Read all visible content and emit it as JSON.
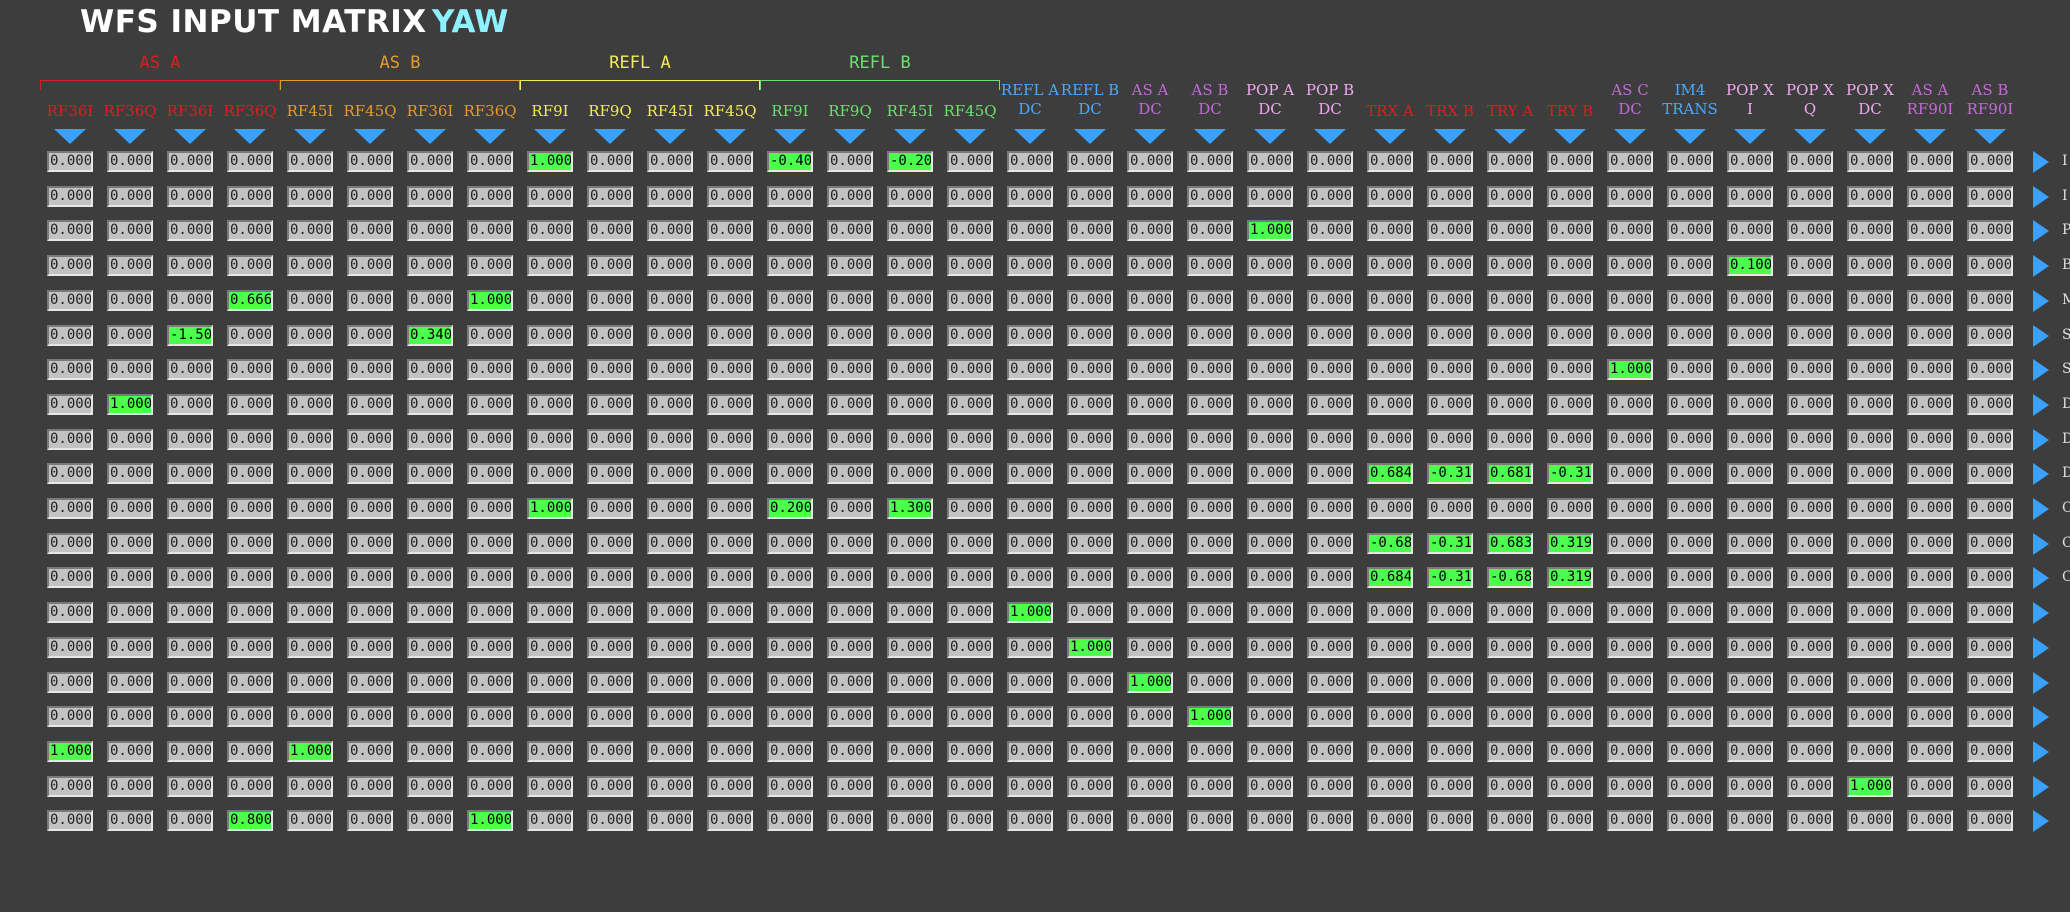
{
  "title": "WFS INPUT MATRIX",
  "dof": "YAW",
  "colors": {
    "background": "#3d3d3d",
    "cell_zero": "#c2c2c2",
    "cell_nonzero": "#4cff4c",
    "arrow": "#39a1ff",
    "dof_title": "#8ff0ff"
  },
  "groups": [
    {
      "label": "AS A",
      "start": 0,
      "end": 3,
      "color": "#d8201e"
    },
    {
      "label": "AS B",
      "start": 4,
      "end": 7,
      "color": "#e69a2a"
    },
    {
      "label": "REFL A",
      "start": 8,
      "end": 11,
      "color": "#f2ea5a"
    },
    {
      "label": "REFL B",
      "start": 12,
      "end": 15,
      "color": "#6ee06e"
    }
  ],
  "columns": [
    {
      "l1": "",
      "l2": "RF36I",
      "color": "#d8201e"
    },
    {
      "l1": "",
      "l2": "RF36Q",
      "color": "#d8201e"
    },
    {
      "l1": "",
      "l2": "RF36I",
      "color": "#d8201e"
    },
    {
      "l1": "",
      "l2": "RF36Q",
      "color": "#d8201e"
    },
    {
      "l1": "",
      "l2": "RF45I",
      "color": "#e69a2a"
    },
    {
      "l1": "",
      "l2": "RF45Q",
      "color": "#e69a2a"
    },
    {
      "l1": "",
      "l2": "RF36I",
      "color": "#e69a2a"
    },
    {
      "l1": "",
      "l2": "RF36Q",
      "color": "#e69a2a"
    },
    {
      "l1": "",
      "l2": "RF9I",
      "color": "#f2ea5a"
    },
    {
      "l1": "",
      "l2": "RF9Q",
      "color": "#f2ea5a"
    },
    {
      "l1": "",
      "l2": "RF45I",
      "color": "#f2ea5a"
    },
    {
      "l1": "",
      "l2": "RF45Q",
      "color": "#f2ea5a"
    },
    {
      "l1": "",
      "l2": "RF9I",
      "color": "#6ee06e"
    },
    {
      "l1": "",
      "l2": "RF9Q",
      "color": "#6ee06e"
    },
    {
      "l1": "",
      "l2": "RF45I",
      "color": "#6ee06e"
    },
    {
      "l1": "",
      "l2": "RF45Q",
      "color": "#6ee06e"
    },
    {
      "l1": "REFL A",
      "l2": "DC",
      "color": "#4aa8ff"
    },
    {
      "l1": "REFL B",
      "l2": "DC",
      "color": "#4aa8ff"
    },
    {
      "l1": "AS A",
      "l2": "DC",
      "color": "#c26ad6"
    },
    {
      "l1": "AS B",
      "l2": "DC",
      "color": "#c26ad6"
    },
    {
      "l1": "POP A",
      "l2": "DC",
      "color": "#f0a8f0"
    },
    {
      "l1": "POP B",
      "l2": "DC",
      "color": "#f0a8f0"
    },
    {
      "l1": "",
      "l2": "TRX A",
      "color": "#d8201e"
    },
    {
      "l1": "",
      "l2": "TRX B",
      "color": "#d8201e"
    },
    {
      "l1": "",
      "l2": "TRY A",
      "color": "#d8201e"
    },
    {
      "l1": "",
      "l2": "TRY B",
      "color": "#d8201e"
    },
    {
      "l1": "AS C",
      "l2": "DC",
      "color": "#c26ad6"
    },
    {
      "l1": "IM4",
      "l2": "TRANS",
      "color": "#4aa8ff"
    },
    {
      "l1": "POP X",
      "l2": "I",
      "color": "#f0a8f0"
    },
    {
      "l1": "POP X",
      "l2": "Q",
      "color": "#f0a8f0"
    },
    {
      "l1": "POP X",
      "l2": "DC",
      "color": "#f0a8f0"
    },
    {
      "l1": "AS A",
      "l2": "RF90I",
      "color": "#c26ad6"
    },
    {
      "l1": "AS B",
      "l2": "RF90I",
      "color": "#c26ad6"
    }
  ],
  "zero_text": "0.0000",
  "nonzero": [
    {
      "r": 0,
      "c": 8,
      "v": "1.0000"
    },
    {
      "r": 0,
      "c": 12,
      "v": "-0.400"
    },
    {
      "r": 0,
      "c": 14,
      "v": "-0.200"
    },
    {
      "r": 2,
      "c": 20,
      "v": "1.0000"
    },
    {
      "r": 3,
      "c": 28,
      "v": "0.1000"
    },
    {
      "r": 4,
      "c": 3,
      "v": "0.6660"
    },
    {
      "r": 4,
      "c": 7,
      "v": "1.0000"
    },
    {
      "r": 5,
      "c": 2,
      "v": "-1.500"
    },
    {
      "r": 5,
      "c": 6,
      "v": "0.3400"
    },
    {
      "r": 6,
      "c": 26,
      "v": "1.0000"
    },
    {
      "r": 7,
      "c": 1,
      "v": "1.0000"
    },
    {
      "r": 9,
      "c": 22,
      "v": "0.6840"
    },
    {
      "r": 9,
      "c": 23,
      "v": "-0.316"
    },
    {
      "r": 9,
      "c": 24,
      "v": "0.6810"
    },
    {
      "r": 9,
      "c": 25,
      "v": "-0.319"
    },
    {
      "r": 10,
      "c": 8,
      "v": "1.0000"
    },
    {
      "r": 10,
      "c": 12,
      "v": "0.2000"
    },
    {
      "r": 10,
      "c": 14,
      "v": "1.3000"
    },
    {
      "r": 11,
      "c": 22,
      "v": "-0.684"
    },
    {
      "r": 11,
      "c": 23,
      "v": "-0.316"
    },
    {
      "r": 11,
      "c": 24,
      "v": "0.6830"
    },
    {
      "r": 11,
      "c": 25,
      "v": "0.3190"
    },
    {
      "r": 12,
      "c": 22,
      "v": "0.6840"
    },
    {
      "r": 12,
      "c": 23,
      "v": "-0.316"
    },
    {
      "r": 12,
      "c": 24,
      "v": "-0.683"
    },
    {
      "r": 12,
      "c": 25,
      "v": "0.3190"
    },
    {
      "r": 13,
      "c": 16,
      "v": "1.0000"
    },
    {
      "r": 14,
      "c": 17,
      "v": "1.0000"
    },
    {
      "r": 15,
      "c": 18,
      "v": "1.0000"
    },
    {
      "r": 16,
      "c": 19,
      "v": "1.0000"
    },
    {
      "r": 17,
      "c": 0,
      "v": "1.0000"
    },
    {
      "r": 17,
      "c": 4,
      "v": "1.0000"
    },
    {
      "r": 18,
      "c": 30,
      "v": "1.0000"
    },
    {
      "r": 19,
      "c": 3,
      "v": "0.8000"
    },
    {
      "r": 19,
      "c": 7,
      "v": "1.0000"
    }
  ],
  "row_labels": [
    "I",
    "I",
    "P",
    "B",
    "M",
    "S",
    "S",
    "DH",
    "DH",
    "DS",
    "CH",
    "CH",
    "CS",
    "",
    "",
    "",
    "",
    "",
    "",
    ""
  ]
}
